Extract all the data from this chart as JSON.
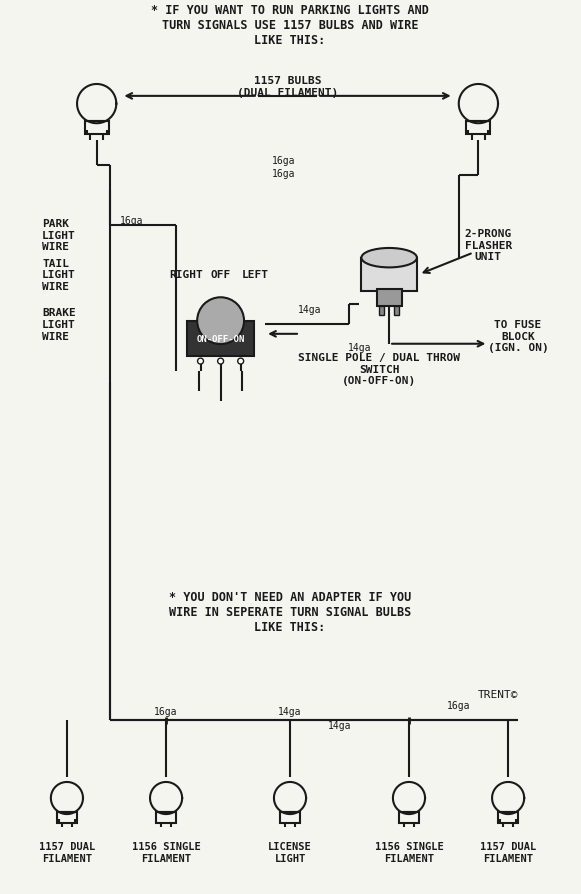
{
  "bg_color": "#f5f5f0",
  "line_color": "#1a1a1a",
  "title_top": "* IF YOU WANT TO RUN PARKING LIGHTS AND\nTURN SIGNALS USE 1157 BULBS AND WIRE\nLIKE THIS:",
  "title_bottom": "* YOU DON'T NEED AN ADAPTER IF YOU\nWIRE IN SEPERATE TURN SIGNAL BULBS\nLIKE THIS:",
  "copyright": "TRENT©",
  "label_1157_bulbs": "1157 BULBS\n(DUAL FILAMENT)",
  "label_16ga_top1": "16ga",
  "label_16ga_top2": "16ga",
  "label_16ga_sw": "16ga",
  "label_14ga_sw": "14ga",
  "label_14ga_fuse": "14ga",
  "label_park": "PARK\nLIGHT\nWIRE",
  "label_tail": "TAIL\nLIGHT\nWIRE",
  "label_brake": "BRAKE\nLIGHT\nWIRE",
  "label_2prong": "2-PRONG\nFLASHER\nUNIT",
  "label_fuse": "TO FUSE\nBLOCK\n(IGN. ON)",
  "label_spdt": "SINGLE POLE / DUAL THROW\nSWITCH\n(ON-OFF-ON)",
  "label_off": "OFF",
  "label_right": "RIGHT",
  "label_left": "LEFT",
  "label_on_off_on": "ON-OFF-ON",
  "labels_bottom": [
    "1157 DUAL\nFILAMENT",
    "1156 SINGLE\nFILAMENT",
    "LICENSE\nLIGHT",
    "1156 SINGLE\nFILAMENT",
    "1157 DUAL\nFILAMENT"
  ],
  "label_16ga_bot1": "16ga",
  "label_16ga_bot2": "16ga",
  "label_14ga_bot1": "14ga",
  "label_14ga_bot2": "14ga"
}
